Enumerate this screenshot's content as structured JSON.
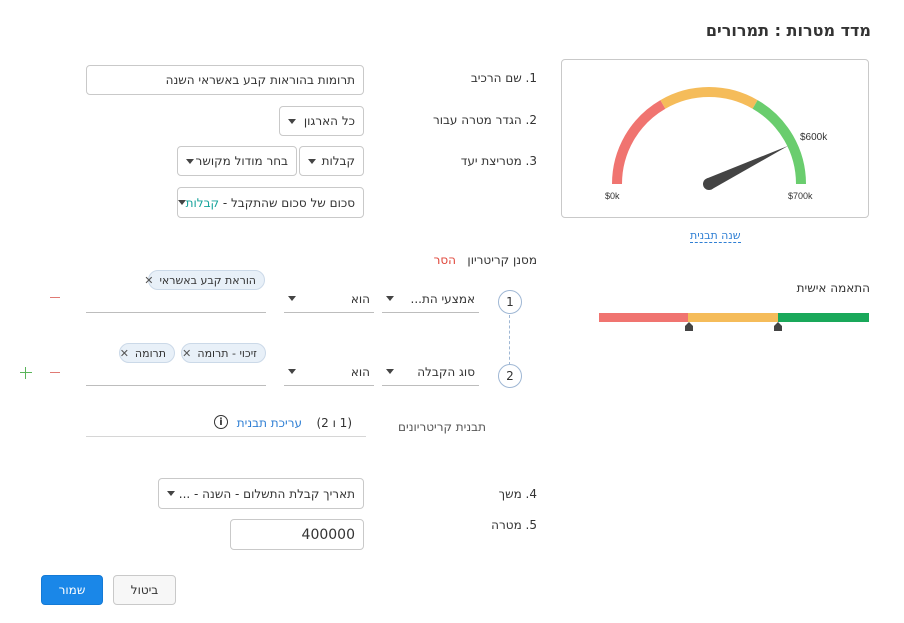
{
  "title": "מדד מטרות : תמרורים",
  "fields": {
    "component_name": {
      "label": "1. שם הרכיב",
      "value": "תרומות בהוראות קבע באשראי השנה"
    },
    "goal_for": {
      "label": "2. הגדר מטרה עבור",
      "value": "כל הארגון"
    },
    "target_metric": {
      "label": "3. מטריצת יעד",
      "module": "קבלות",
      "related_module": "בחר מודול מקושר",
      "aggregate_prefix": "סכום של סכום שהתקבל - ",
      "aggregate_suffix": "קבלות"
    },
    "duration": {
      "label": "4. משך",
      "value": "תאריך קבלת התשלום - השנה - ..."
    },
    "goal": {
      "label": "5. מטרה",
      "value": "400000"
    }
  },
  "criteria": {
    "label": "מסנן קריטריון",
    "remove_label": "הסר",
    "rows": [
      {
        "num": "1",
        "field": "אמצעי הת...",
        "operator": "הוא",
        "chips": [
          "הוראת קבע באשראי"
        ]
      },
      {
        "num": "2",
        "field": "סוג הקבלה",
        "operator": "הוא",
        "chips": [
          "זיכוי - תרומה",
          "תרומה"
        ]
      }
    ],
    "template_label": "תבנית קריטריונים",
    "template_value": "(1 ו 2)",
    "edit_template": "עריכת תבנית"
  },
  "gauge": {
    "min_label": "$0k",
    "max_label": "$700k",
    "value_label": "$600k",
    "value": 600,
    "max": 700,
    "colors": {
      "low": "#f07470",
      "mid": "#f5bc5a",
      "high": "#6acd6e"
    },
    "change_template": "שנה תבנית"
  },
  "personalization": {
    "label": "התאמה אישית",
    "colors": {
      "red": "#f07470",
      "yellow": "#f5bc5a",
      "green": "#19a85a"
    }
  },
  "buttons": {
    "save": "שמור",
    "cancel": "ביטול"
  },
  "icons": {
    "remove": "minus-icon",
    "add": "plus-icon",
    "info": "info-icon",
    "dropdown": "caret-down-icon"
  }
}
